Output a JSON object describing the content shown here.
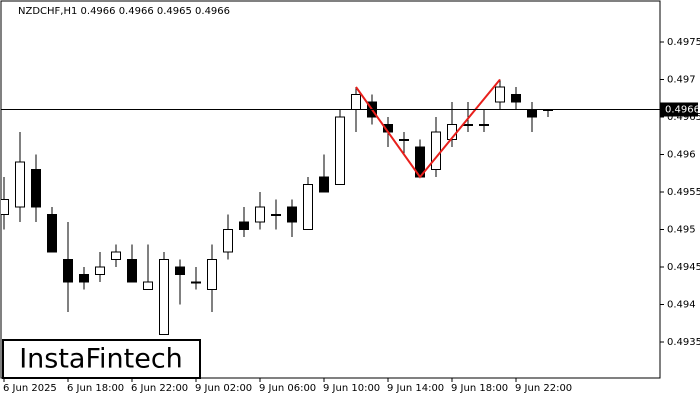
{
  "chart_data": {
    "type": "candlestick",
    "title": "NZDCHF,H1  0.4966 0.4966 0.4965 0.4966",
    "logo": "InstaFintech",
    "categories": [
      "6 Jun 2025",
      null,
      null,
      null,
      "6 Jun 18:00",
      null,
      null,
      null,
      "6 Jun 22:00",
      null,
      null,
      null,
      "9 Jun 02:00",
      null,
      null,
      null,
      "9 Jun 06:00",
      null,
      null,
      null,
      "9 Jun 10:00",
      null,
      null,
      null,
      "9 Jun 14:00",
      null,
      null,
      null,
      "9 Jun 18:00",
      null,
      null,
      null,
      "9 Jun 22:00",
      null,
      null
    ],
    "open": [
      0.4952,
      0.4953,
      0.4958,
      0.4952,
      0.4946,
      0.4944,
      0.4944,
      0.4946,
      0.4946,
      0.4942,
      0.4936,
      0.4945,
      0.4943,
      0.4942,
      0.4947,
      0.4951,
      0.4951,
      0.4952,
      0.4953,
      0.495,
      0.4957,
      0.4956,
      0.4966,
      0.4967,
      0.4964,
      0.4962,
      0.4961,
      0.4958,
      0.4962,
      0.4964,
      0.4964,
      0.4967,
      0.4968,
      0.4966,
      0.4966
    ],
    "high": [
      0.4957,
      0.4963,
      0.496,
      0.4953,
      0.4951,
      0.4945,
      0.4947,
      0.4948,
      0.4948,
      0.4948,
      0.4947,
      0.4946,
      0.4945,
      0.4948,
      0.4952,
      0.4953,
      0.4955,
      0.4954,
      0.4954,
      0.4957,
      0.496,
      0.4966,
      0.4969,
      0.4968,
      0.4965,
      0.4963,
      0.4962,
      0.4965,
      0.4967,
      0.4967,
      0.4966,
      0.497,
      0.4969,
      0.4967,
      0.4966
    ],
    "low": [
      0.495,
      0.4951,
      0.4951,
      0.4947,
      0.4939,
      0.4942,
      0.4943,
      0.4945,
      0.4943,
      0.4942,
      0.4936,
      0.494,
      0.4942,
      0.4939,
      0.4946,
      0.4949,
      0.495,
      0.495,
      0.4949,
      0.495,
      0.4955,
      0.4956,
      0.4963,
      0.4964,
      0.4961,
      0.496,
      0.4957,
      0.4957,
      0.4961,
      0.4963,
      0.4963,
      0.4966,
      0.4966,
      0.4963,
      0.4965
    ],
    "close": [
      0.4954,
      0.4959,
      0.4953,
      0.4947,
      0.4943,
      0.4943,
      0.4945,
      0.4947,
      0.4943,
      0.4943,
      0.4946,
      0.4944,
      0.4943,
      0.4946,
      0.495,
      0.495,
      0.4953,
      0.4952,
      0.4951,
      0.4956,
      0.4955,
      0.4965,
      0.4968,
      0.4965,
      0.4963,
      0.4962,
      0.4957,
      0.4963,
      0.4964,
      0.4964,
      0.4964,
      0.4969,
      0.4967,
      0.4965,
      0.4966
    ],
    "pattern": {
      "color": "#e8201c",
      "indices": [
        22,
        26,
        31
      ],
      "values": [
        0.4969,
        0.4957,
        0.497
      ]
    },
    "current_price": 0.4966,
    "ylim": [
      0.49302,
      0.49806
    ],
    "yticks": [
      0.4935,
      0.494,
      0.4945,
      0.495,
      0.4955,
      0.496,
      0.4965,
      0.497,
      0.4975
    ]
  }
}
